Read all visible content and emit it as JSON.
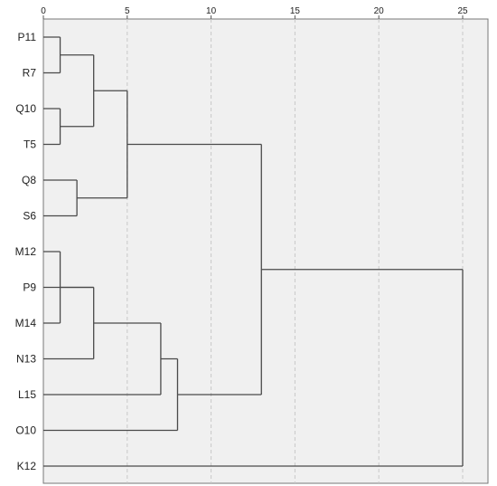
{
  "chart_data": {
    "type": "dendrogram",
    "title": "",
    "xlabel": "",
    "ylabel": "",
    "x_range": [
      0,
      25
    ],
    "x_ticks": [
      0,
      5,
      10,
      15,
      20,
      25
    ],
    "x_tick_labels": [
      "0",
      "5",
      "10",
      "15",
      "20",
      "25"
    ],
    "grid": "vertical dashed",
    "leaves": [
      "P11",
      "R7",
      "Q10",
      "T5",
      "Q8",
      "S6",
      "M12",
      "P9",
      "M14",
      "N13",
      "L15",
      "O10",
      "K12"
    ],
    "merges": [
      {
        "id": "c1",
        "left": "P11",
        "right": "R7",
        "height": 1
      },
      {
        "id": "c2",
        "left": "Q10",
        "right": "T5",
        "height": 1
      },
      {
        "id": "c3",
        "left": "c1",
        "right": "c2",
        "height": 3
      },
      {
        "id": "c4",
        "left": "Q8",
        "right": "S6",
        "height": 2
      },
      {
        "id": "c5",
        "left": "c3",
        "right": "c4",
        "height": 5
      },
      {
        "id": "c6",
        "left": "M12",
        "right": "M14",
        "height": 1
      },
      {
        "id": "c7",
        "left": "c6",
        "right": "P9",
        "height": 3
      },
      {
        "id": "c8",
        "left": "c7",
        "right": "N13",
        "height": 3
      },
      {
        "id": "c9",
        "left": "c8",
        "right": "L15",
        "height": 7
      },
      {
        "id": "c10",
        "left": "c9",
        "right": "O10",
        "height": 8
      },
      {
        "id": "c11",
        "left": "c5",
        "right": "c10",
        "height": 13
      },
      {
        "id": "c12",
        "left": "c11",
        "right": "K12",
        "height": 25
      }
    ],
    "colors": {
      "panel": "#f0f0f0",
      "line": "#4a4a4a",
      "grid": "#c8c8c8"
    }
  }
}
